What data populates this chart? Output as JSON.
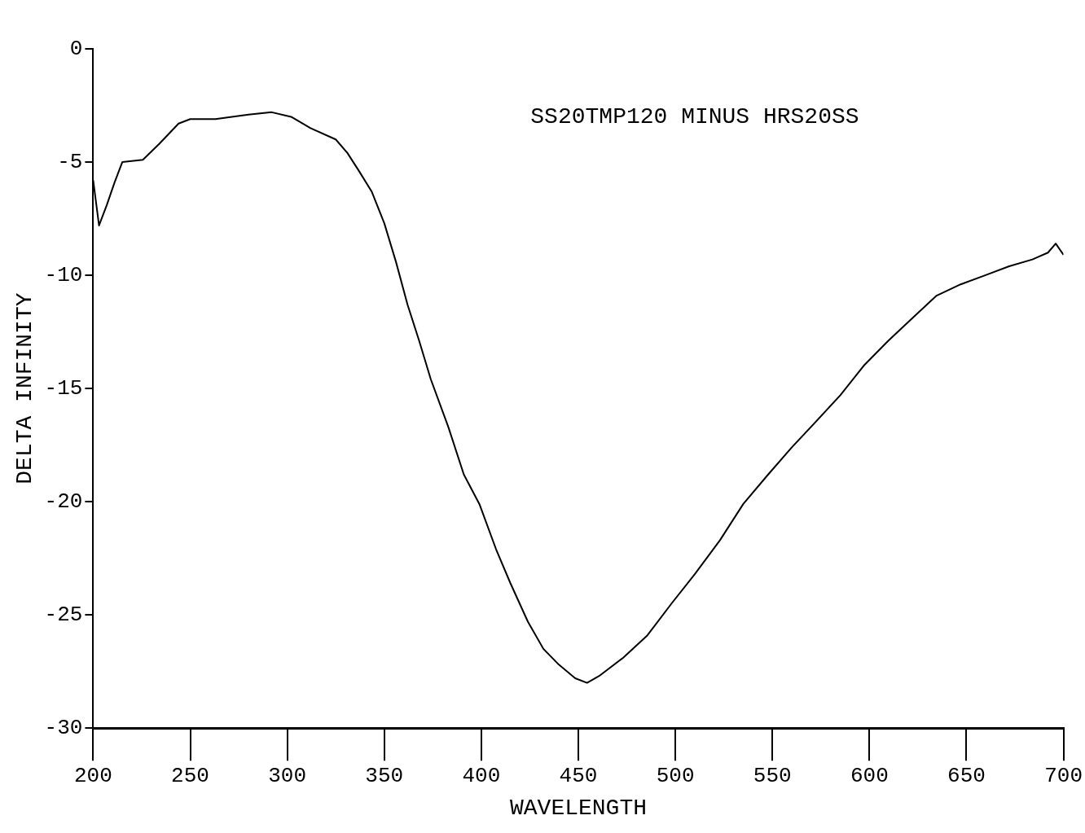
{
  "chart_data": {
    "type": "line",
    "xlabel": "WAVELENGTH",
    "ylabel": "DELTA INFINITY",
    "annotations": [
      "SS20TMP120 MINUS HRS20SS"
    ],
    "x": [
      200,
      203,
      207,
      211,
      215,
      225.6,
      234,
      244,
      250,
      263,
      280,
      292,
      302,
      312,
      325,
      331,
      337,
      343.5,
      350,
      356,
      362,
      368,
      374,
      383,
      391,
      399,
      407.6,
      415,
      424,
      432,
      440,
      448.4,
      454.5,
      460.7,
      473,
      485.6,
      498,
      510,
      523,
      535,
      547.8,
      560,
      572,
      585,
      597,
      609.6,
      622,
      634.6,
      647,
      659.6,
      672,
      684,
      692,
      696,
      700
    ],
    "series": [
      {
        "color": "#000000",
        "values": [
          -5.8,
          -7.8,
          -6.9,
          -5.9,
          -5.0,
          -4.9,
          -4.2,
          -3.3,
          -3.1,
          -3.1,
          -2.9,
          -2.8,
          -3.0,
          -3.5,
          -4.0,
          -4.6,
          -5.4,
          -6.3,
          -7.7,
          -9.4,
          -11.3,
          -12.9,
          -14.6,
          -16.7,
          -18.8,
          -20.1,
          -22.1,
          -23.6,
          -25.3,
          -26.5,
          -27.2,
          -27.8,
          -28.0,
          -27.7,
          -26.9,
          -25.9,
          -24.5,
          -23.2,
          -21.7,
          -20.1,
          -18.8,
          -17.6,
          -16.5,
          -15.3,
          -14.0,
          -12.9,
          -11.9,
          -10.9,
          -10.4,
          -10.0,
          -9.6,
          -9.3,
          -9.0,
          -8.6,
          -9.1
        ]
      }
    ],
    "xlim": [
      200,
      700
    ],
    "xticks": [
      200,
      250,
      300,
      350,
      400,
      450,
      500,
      550,
      600,
      650,
      700
    ],
    "ylim": [
      -30,
      0
    ],
    "yticks": [
      -30,
      -25,
      -20,
      -15,
      -10,
      -5,
      0
    ],
    "grid": false,
    "legend": false,
    "marker": "none",
    "line_style": "solid"
  }
}
